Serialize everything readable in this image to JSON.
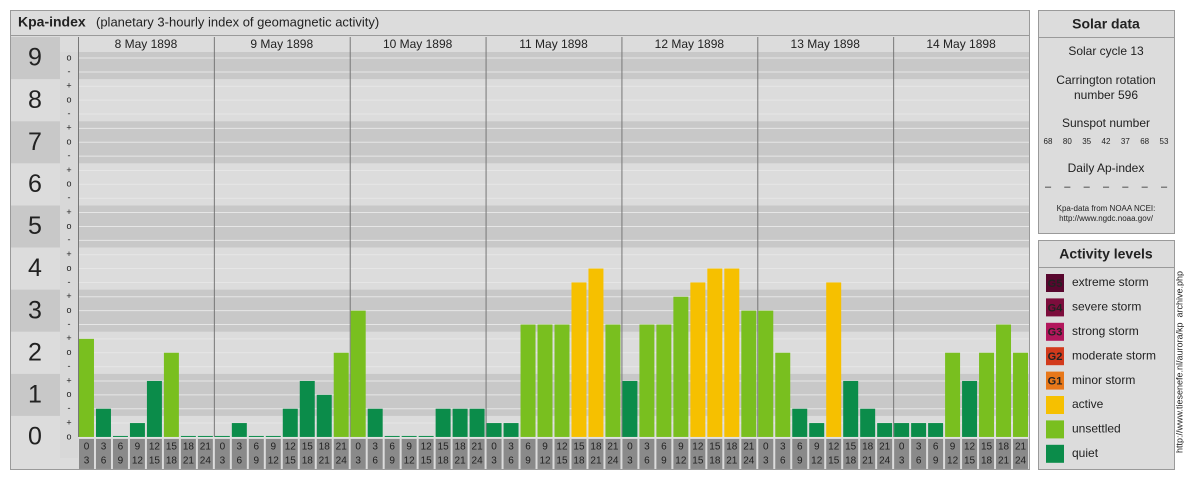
{
  "chart_data": {
    "type": "bar",
    "title": "Kpa-index",
    "subtitle": "(planetary 3-hourly index of geomagnetic activity)",
    "days": [
      "8 May 1898",
      "9 May 1898",
      "10 May 1898",
      "11 May 1898",
      "12 May 1898",
      "13 May 1898",
      "14 May 1898"
    ],
    "hours": [
      [
        "0",
        "3"
      ],
      [
        "3",
        "6"
      ],
      [
        "6",
        "9"
      ],
      [
        "9",
        "12"
      ],
      [
        "12",
        "15"
      ],
      [
        "15",
        "18"
      ],
      [
        "18",
        "21"
      ],
      [
        "21",
        "24"
      ]
    ],
    "values": [
      2.33,
      0.67,
      0,
      0.33,
      1.33,
      2,
      0,
      0,
      0,
      0.33,
      0,
      0,
      0.67,
      1.33,
      1,
      2,
      3,
      0.67,
      0,
      0,
      0,
      0.67,
      0.67,
      0.67,
      0.33,
      0.33,
      2.67,
      2.67,
      2.67,
      3.67,
      4,
      2.67,
      1.33,
      2.67,
      2.67,
      3.33,
      3.67,
      4,
      4,
      3,
      3,
      2,
      0.67,
      0.33,
      3.67,
      1.33,
      0.67,
      0.33,
      0.33,
      0.33,
      0.33,
      2,
      1.33,
      2,
      2.67,
      2
    ],
    "colors": [
      "#79bf1f",
      "#0b8c4a",
      "#0b8c4a",
      "#0b8c4a",
      "#0b8c4a",
      "#79bf1f",
      "#0b8c4a",
      "#0b8c4a",
      "#0b8c4a",
      "#0b8c4a",
      "#0b8c4a",
      "#0b8c4a",
      "#0b8c4a",
      "#0b8c4a",
      "#0b8c4a",
      "#79bf1f",
      "#79bf1f",
      "#0b8c4a",
      "#0b8c4a",
      "#0b8c4a",
      "#0b8c4a",
      "#0b8c4a",
      "#0b8c4a",
      "#0b8c4a",
      "#0b8c4a",
      "#0b8c4a",
      "#79bf1f",
      "#79bf1f",
      "#79bf1f",
      "#f6c000",
      "#f6c000",
      "#79bf1f",
      "#0b8c4a",
      "#79bf1f",
      "#79bf1f",
      "#79bf1f",
      "#f6c000",
      "#f6c000",
      "#f6c000",
      "#79bf1f",
      "#79bf1f",
      "#79bf1f",
      "#0b8c4a",
      "#0b8c4a",
      "#f6c000",
      "#0b8c4a",
      "#0b8c4a",
      "#0b8c4a",
      "#0b8c4a",
      "#0b8c4a",
      "#0b8c4a",
      "#79bf1f",
      "#0b8c4a",
      "#79bf1f",
      "#79bf1f",
      "#79bf1f"
    ],
    "ylim": [
      -0.5,
      9.5
    ],
    "yticks": [
      0,
      1,
      2,
      3,
      4,
      5,
      6,
      7,
      8,
      9
    ],
    "minor_yticks": [
      {
        "value": 0,
        "label": "o"
      },
      {
        "value": 0.33,
        "label": "+"
      },
      {
        "value": 0.67,
        "label": "-"
      },
      {
        "value": 1,
        "label": "o"
      },
      {
        "value": 1.33,
        "label": "+"
      },
      {
        "value": 1.67,
        "label": "-"
      },
      {
        "value": 2,
        "label": "o"
      },
      {
        "value": 2.33,
        "label": "+"
      },
      {
        "value": 2.67,
        "label": "-"
      },
      {
        "value": 3,
        "label": "o"
      },
      {
        "value": 3.33,
        "label": "+"
      },
      {
        "value": 3.67,
        "label": "-"
      },
      {
        "value": 4,
        "label": "o"
      },
      {
        "value": 4.33,
        "label": "+"
      },
      {
        "value": 4.67,
        "label": "-"
      },
      {
        "value": 5,
        "label": "o"
      },
      {
        "value": 5.33,
        "label": "+"
      },
      {
        "value": 5.67,
        "label": "-"
      },
      {
        "value": 6,
        "label": "o"
      },
      {
        "value": 6.33,
        "label": "+"
      },
      {
        "value": 6.67,
        "label": "-"
      },
      {
        "value": 7,
        "label": "o"
      },
      {
        "value": 7.33,
        "label": "+"
      },
      {
        "value": 7.67,
        "label": "-"
      },
      {
        "value": 8,
        "label": "o"
      },
      {
        "value": 8.33,
        "label": "+"
      },
      {
        "value": 8.67,
        "label": "-"
      },
      {
        "value": 9,
        "label": "o"
      }
    ],
    "grid": true
  },
  "solar_data": {
    "title": "Solar data",
    "cycle": "Solar cycle 13",
    "carrington": [
      "Carrington rotation",
      "number 596"
    ],
    "sunspot_label": "Sunspot number",
    "sunspot_numbers": [
      68,
      80,
      35,
      42,
      37,
      68,
      53
    ],
    "ap_label": "Daily Ap-index",
    "ap_values": [
      "–",
      "–",
      "–",
      "–",
      "–",
      "–",
      "–"
    ],
    "source": [
      "Kpa-data from NOAA NCEI:",
      "http://www.ngdc.noaa.gov/"
    ]
  },
  "activity_levels": {
    "title": "Activity levels",
    "items": [
      {
        "badge": "G5",
        "label": "extreme storm",
        "color": "#58062e"
      },
      {
        "badge": "G4",
        "label": "severe storm",
        "color": "#7c0d3c"
      },
      {
        "badge": "G3",
        "label": "strong storm",
        "color": "#b2175c"
      },
      {
        "badge": "G2",
        "label": "moderate storm",
        "color": "#d23a1c"
      },
      {
        "badge": "G1",
        "label": "minor storm",
        "color": "#e8781a"
      },
      {
        "label": "active",
        "color": "#f6c000"
      },
      {
        "label": "unsettled",
        "color": "#79bf1f"
      },
      {
        "label": "quiet",
        "color": "#0b8c4a"
      }
    ]
  },
  "watermark": "http://www.tiesenefe.nl/aurora/kp_archive.php"
}
